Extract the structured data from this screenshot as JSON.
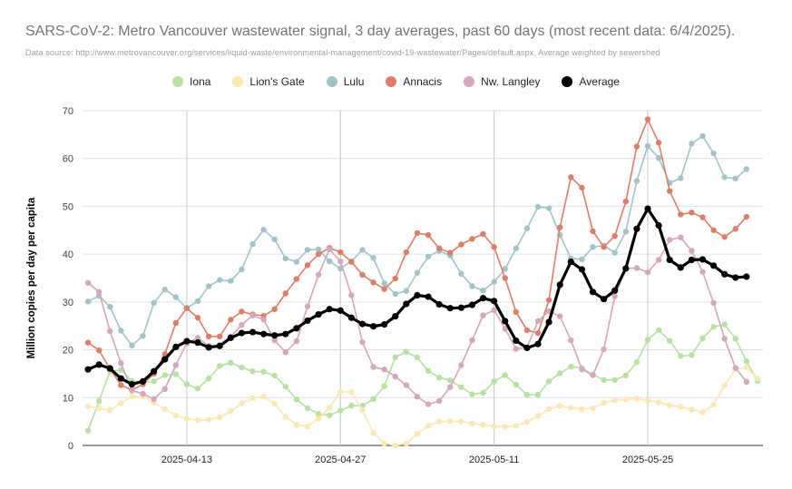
{
  "chart_data": {
    "type": "line",
    "title": "SARS-CoV-2: Metro Vancouver wastewater signal, 3 day averages, past 60 days (most recent data: 6/4/2025).",
    "subtitle": "Data source: http://www.metrovancouver.org/services/liquid-waste/environmental-management/covid-19-wastewater/Pages/default.aspx. Average weighted by sewershed",
    "ylabel": "Million copies per day per capita",
    "xlabel": "",
    "ylim": [
      0,
      70
    ],
    "yticks": [
      "0",
      "10",
      "20",
      "30",
      "40",
      "50",
      "60",
      "70"
    ],
    "xtick_labels": [
      "2025-04-13",
      "2025-04-27",
      "2025-05-11",
      "2025-05-25"
    ],
    "xtick_index": [
      9,
      23,
      37,
      51
    ],
    "grid": true,
    "legend_position": "top",
    "series": [
      {
        "name": "Iona",
        "color": "#b7e1a1",
        "values": [
          3.1,
          9.3,
          15.5,
          15.8,
          13.5,
          13.2,
          13.4,
          14.7,
          14.9,
          12.8,
          11.9,
          14.0,
          16.6,
          17.3,
          16.3,
          15.5,
          15.4,
          14.6,
          12.3,
          9.6,
          7.8,
          6.6,
          6.3,
          7.3,
          8.3,
          8.3,
          9.7,
          12.4,
          18.4,
          19.6,
          18.4,
          15.6,
          14.2,
          13.6,
          12.2,
          10.7,
          11.0,
          13.4,
          14.7,
          12.7,
          10.6,
          10.6,
          13.4,
          15.1,
          16.5,
          16.2,
          14.8,
          13.7,
          13.7,
          14.6,
          17.4,
          22.1,
          24.1,
          21.9,
          18.7,
          18.9,
          22.4,
          24.8,
          25.3,
          22.3,
          17.6,
          13.5
        ]
      },
      {
        "name": "Lion's Gate",
        "color": "#fce8b2",
        "values": [
          8.2,
          7.8,
          7.4,
          8.8,
          10.3,
          10.2,
          8.9,
          7.6,
          6.3,
          5.6,
          5.3,
          5.4,
          5.9,
          7.2,
          8.8,
          9.9,
          10.2,
          8.7,
          6.0,
          4.3,
          4.0,
          5.6,
          7.9,
          11.2,
          11.2,
          7.4,
          2.6,
          0.4,
          0.0,
          0.4,
          2.4,
          4.1,
          5.0,
          5.1,
          5.0,
          4.6,
          4.3,
          4.0,
          3.9,
          4.1,
          4.9,
          6.2,
          7.6,
          8.3,
          7.9,
          7.6,
          7.8,
          8.9,
          9.5,
          9.6,
          9.8,
          9.4,
          9.0,
          8.4,
          8.1,
          7.5,
          6.9,
          8.5,
          12.6,
          16.0,
          16.3,
          14.0
        ]
      },
      {
        "name": "Lulu",
        "color": "#a2c4c9",
        "values": [
          30.1,
          31.3,
          29.0,
          24.0,
          20.9,
          22.9,
          29.8,
          32.6,
          31.0,
          28.7,
          30.2,
          33.3,
          34.6,
          34.4,
          36.8,
          42.1,
          45.1,
          43.1,
          39.1,
          38.4,
          40.9,
          41.0,
          38.5,
          37.0,
          38.5,
          40.9,
          39.2,
          33.9,
          31.7,
          32.3,
          36.1,
          39.5,
          40.7,
          39.7,
          35.9,
          33.3,
          32.4,
          34.2,
          36.9,
          41.2,
          45.4,
          49.9,
          49.6,
          44.0,
          39.1,
          38.9,
          41.5,
          41.8,
          40.3,
          44.7,
          55.3,
          62.6,
          60.1,
          54.9,
          55.9,
          63.1,
          64.7,
          61.1,
          56.1,
          55.8,
          57.8
        ]
      },
      {
        "name": "Annacis",
        "color": "#dd7e6b",
        "values": [
          21.5,
          19.9,
          16.0,
          12.6,
          11.6,
          12.8,
          15.0,
          19.1,
          25.6,
          28.7,
          26.7,
          22.8,
          22.8,
          26.3,
          28.0,
          27.4,
          27.1,
          28.5,
          31.8,
          34.8,
          37.7,
          40.0,
          41.3,
          40.4,
          38.4,
          35.7,
          34.1,
          32.7,
          34.9,
          40.4,
          44.4,
          44.0,
          41.2,
          40.3,
          42.0,
          43.2,
          44.2,
          41.5,
          35.0,
          27.9,
          24.1,
          23.5,
          30.4,
          45.6,
          56.1,
          53.9,
          44.8,
          41.5,
          43.8,
          51.0,
          62.5,
          68.2,
          63.3,
          53.2,
          48.3,
          48.7,
          47.7,
          45.0,
          43.6,
          45.3,
          47.8
        ]
      },
      {
        "name": "Nw. Langley",
        "color": "#d5a6bd",
        "values": [
          34.0,
          32.1,
          23.9,
          17.2,
          11.5,
          10.8,
          9.7,
          11.8,
          16.8,
          21.4,
          22.5,
          20.8,
          21.0,
          22.8,
          25.2,
          27.2,
          26.3,
          22.0,
          19.5,
          21.8,
          29.1,
          35.7,
          41.0,
          38.5,
          31.4,
          21.6,
          16.4,
          15.9,
          14.4,
          12.6,
          10.2,
          8.6,
          9.3,
          12.2,
          16.8,
          22.0,
          27.2,
          28.3,
          24.4,
          20.2,
          20.5,
          26.0,
          28.1,
          27.0,
          22.0,
          15.9,
          14.7,
          20.1,
          31.2,
          37.0,
          37.1,
          36.2,
          38.8,
          43.0,
          43.5,
          40.7,
          36.3,
          29.8,
          22.3,
          16.2,
          13.3
        ]
      },
      {
        "name": "Average",
        "color": "#000000",
        "values": [
          15.9,
          16.9,
          16.1,
          14.0,
          12.8,
          13.4,
          15.5,
          18.0,
          20.6,
          21.8,
          21.5,
          20.5,
          20.8,
          22.5,
          23.5,
          23.7,
          23.3,
          23.0,
          23.3,
          24.5,
          26.1,
          27.4,
          28.5,
          28.2,
          26.7,
          25.4,
          24.9,
          25.3,
          27.0,
          29.6,
          31.4,
          31.1,
          29.5,
          28.7,
          28.8,
          29.4,
          30.8,
          30.2,
          26.0,
          21.9,
          20.4,
          21.2,
          25.8,
          33.6,
          38.4,
          36.8,
          32.1,
          30.6,
          32.4,
          37.0,
          45.3,
          49.5,
          46.0,
          38.8,
          37.2,
          38.8,
          38.9,
          37.6,
          35.8,
          35.1,
          35.3
        ]
      }
    ]
  }
}
